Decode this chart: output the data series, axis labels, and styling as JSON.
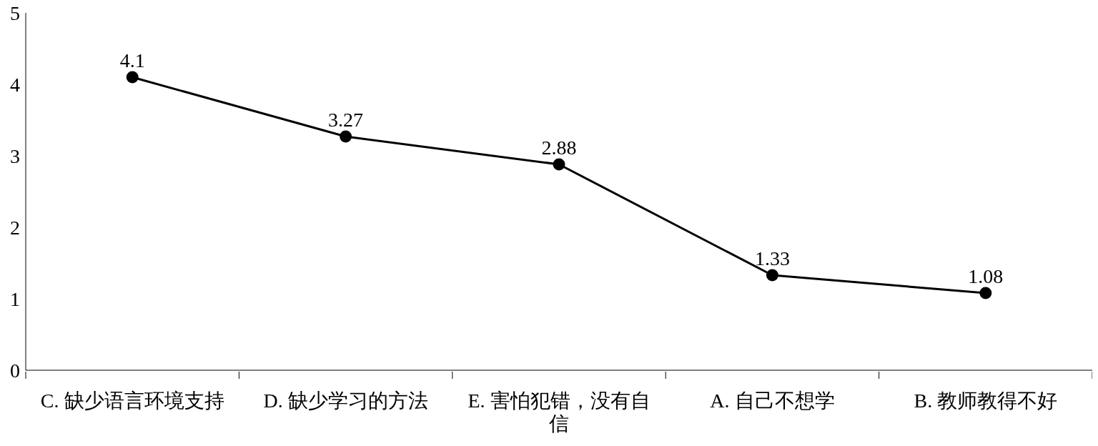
{
  "chart_data": {
    "type": "line",
    "categories": [
      "C. 缺少语言环境支持",
      "D. 缺少学习的方法",
      "E. 害怕犯错，没有自信",
      "A. 自己不想学",
      "B. 教师教得不好"
    ],
    "series": [
      {
        "color": "#000000",
        "values": [
          4.1,
          3.27,
          2.88,
          1.33,
          1.08
        ]
      }
    ],
    "ylim": [
      0,
      5
    ],
    "yticks": [
      0,
      1,
      2,
      3,
      4,
      5
    ],
    "grid": false,
    "legend": false,
    "marker": "circle",
    "line_style": "solid",
    "data_labels": true
  }
}
